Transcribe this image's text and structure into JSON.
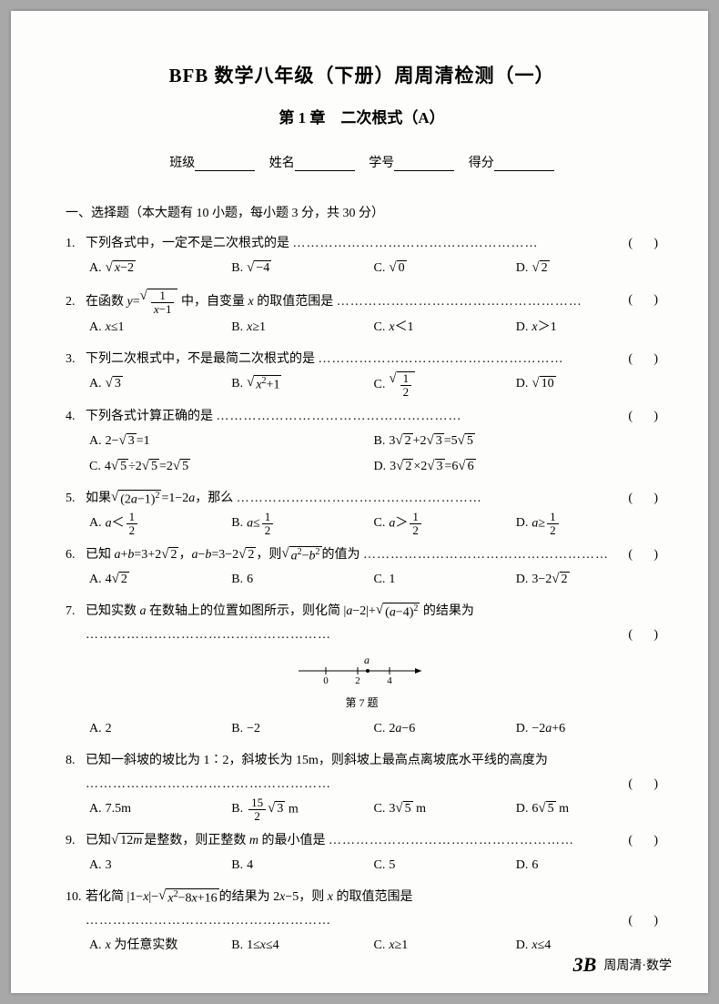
{
  "title": "BFB 数学八年级（下册）周周清检测（一）",
  "subtitle": "第 1 章　二次根式（A）",
  "info_fields": [
    "班级",
    "姓名",
    "学号",
    "得分"
  ],
  "section1": "一、选择题（本大题有 10 小题，每小题 3 分，共 30 分）",
  "questions": [
    {
      "num": "1.",
      "text": "下列各式中，一定不是二次根式的是",
      "options_html": [
        "<span class='sqrt'><span class='sqrt-sym'>√</span><span class='sqrt-body'><span class='ital'>x</span>−2</span></span>",
        "<span class='sqrt'><span class='sqrt-sym'>√</span><span class='sqrt-body'>−4</span></span>",
        "<span class='sqrt'><span class='sqrt-sym'>√</span><span class='sqrt-body'>0</span></span>",
        "<span class='sqrt'><span class='sqrt-sym'>√</span><span class='sqrt-body'>2</span></span>"
      ]
    },
    {
      "num": "2.",
      "text_html": "在函数 <span class='ital'>y</span>=<span class='sqrt'><span class='sqrt-sym'>√</span><span class='sqrt-body'><span class='frac'><span class='frac-num'>1</span><span class='frac-den'><span class='ital'>x</span>−1</span></span></span></span> 中，自变量 <span class='ital'>x</span> 的取值范围是",
      "options_html": [
        "<span class='ital'>x</span>≤1",
        "<span class='ital'>x</span>≥1",
        "<span class='ital'>x</span>＜1",
        "<span class='ital'>x</span>＞1"
      ]
    },
    {
      "num": "3.",
      "text": "下列二次根式中，不是最简二次根式的是",
      "options_html": [
        "<span class='sqrt'><span class='sqrt-sym'>√</span><span class='sqrt-body'>3</span></span>",
        "<span class='sqrt'><span class='sqrt-sym'>√</span><span class='sqrt-body'><span class='ital'>x</span><span class='sup'>2</span>+1</span></span>",
        "<span class='sqrt'><span class='sqrt-sym'>√</span><span class='sqrt-body'><span class='frac'><span class='frac-num'>1</span><span class='frac-den'>2</span></span></span></span>",
        "<span class='sqrt'><span class='sqrt-sym'>√</span><span class='sqrt-body'>10</span></span>"
      ]
    },
    {
      "num": "4.",
      "text": "下列各式计算正确的是",
      "options2_html": [
        "2−<span class='sqrt'><span class='sqrt-sym'>√</span><span class='sqrt-body'>3</span></span>=1",
        "3<span class='sqrt'><span class='sqrt-sym'>√</span><span class='sqrt-body'>2</span></span>+2<span class='sqrt'><span class='sqrt-sym'>√</span><span class='sqrt-body'>3</span></span>=5<span class='sqrt'><span class='sqrt-sym'>√</span><span class='sqrt-body'>5</span></span>",
        "4<span class='sqrt'><span class='sqrt-sym'>√</span><span class='sqrt-body'>5</span></span>÷2<span class='sqrt'><span class='sqrt-sym'>√</span><span class='sqrt-body'>5</span></span>=2<span class='sqrt'><span class='sqrt-sym'>√</span><span class='sqrt-body'>5</span></span>",
        "3<span class='sqrt'><span class='sqrt-sym'>√</span><span class='sqrt-body'>2</span></span>×2<span class='sqrt'><span class='sqrt-sym'>√</span><span class='sqrt-body'>3</span></span>=6<span class='sqrt'><span class='sqrt-sym'>√</span><span class='sqrt-body'>6</span></span>"
      ]
    },
    {
      "num": "5.",
      "text_html": "如果<span class='sqrt'><span class='sqrt-sym'>√</span><span class='sqrt-body'>(2<span class='ital'>a</span>−1)<span class='sup'>2</span></span></span>=1−2<span class='ital'>a</span>，那么",
      "options_html": [
        "<span class='ital'>a</span>＜<span class='frac'><span class='frac-num'>1</span><span class='frac-den'>2</span></span>",
        "<span class='ital'>a</span>≤<span class='frac'><span class='frac-num'>1</span><span class='frac-den'>2</span></span>",
        "<span class='ital'>a</span>＞<span class='frac'><span class='frac-num'>1</span><span class='frac-den'>2</span></span>",
        "<span class='ital'>a</span>≥<span class='frac'><span class='frac-num'>1</span><span class='frac-den'>2</span></span>"
      ]
    },
    {
      "num": "6.",
      "text_html": "已知 <span class='ital'>a</span>+<span class='ital'>b</span>=3+2<span class='sqrt'><span class='sqrt-sym'>√</span><span class='sqrt-body'>2</span></span>，<span class='ital'>a</span>−<span class='ital'>b</span>=3−2<span class='sqrt'><span class='sqrt-sym'>√</span><span class='sqrt-body'>2</span></span>，则<span class='sqrt'><span class='sqrt-sym'>√</span><span class='sqrt-body'><span class='ital'>a</span><span class='sup'>2</span>−<span class='ital'>b</span><span class='sup'>2</span></span></span>的值为",
      "options_html": [
        "4<span class='sqrt'><span class='sqrt-sym'>√</span><span class='sqrt-body'>2</span></span>",
        "6",
        "1",
        "3−2<span class='sqrt'><span class='sqrt-sym'>√</span><span class='sqrt-body'>2</span></span>"
      ]
    },
    {
      "num": "7.",
      "text_html": "已知实数 <span class='ital'>a</span> 在数轴上的位置如图所示，则化简 |<span class='ital'>a</span>−2|+<span class='sqrt'><span class='sqrt-sym'>√</span><span class='sqrt-body'>(<span class='ital'>a</span>−4)<span class='sup'>2</span></span></span> 的结果为",
      "has_figure": true,
      "fig_caption": "第 7 题",
      "options_html": [
        "2",
        "−2",
        "2<span class='ital'>a</span>−6",
        "−2<span class='ital'>a</span>+6"
      ]
    },
    {
      "num": "8.",
      "text": "已知一斜坡的坡比为 1∶2，斜坡长为 15m，则斜坡上最高点离坡底水平线的高度为",
      "options_html": [
        "7.5m",
        "<span class='frac'><span class='frac-num'>15</span><span class='frac-den'>2</span></span><span class='sqrt'><span class='sqrt-sym'>√</span><span class='sqrt-body'>3</span></span> m",
        "3<span class='sqrt'><span class='sqrt-sym'>√</span><span class='sqrt-body'>5</span></span> m",
        "6<span class='sqrt'><span class='sqrt-sym'>√</span><span class='sqrt-body'>5</span></span> m"
      ]
    },
    {
      "num": "9.",
      "text_html": "已知<span class='sqrt'><span class='sqrt-sym'>√</span><span class='sqrt-body'>12<span class='ital'>m</span></span></span>是整数，则正整数 <span class='ital'>m</span> 的最小值是",
      "options_html": [
        "3",
        "4",
        "5",
        "6"
      ]
    },
    {
      "num": "10.",
      "text_html": "若化简 |1−<span class='ital'>x</span>|−<span class='sqrt'><span class='sqrt-sym'>√</span><span class='sqrt-body'><span class='ital'>x</span><span class='sup'>2</span>−8<span class='ital'>x</span>+16</span></span>的结果为 2<span class='ital'>x</span>−5，则 <span class='ital'>x</span> 的取值范围是",
      "options_html": [
        "<span class='ital'>x</span> 为任意实数",
        "1≤<span class='ital'>x</span>≤4",
        "<span class='ital'>x</span>≥1",
        "<span class='ital'>x</span>≤4"
      ]
    }
  ],
  "opt_labels": [
    "A.",
    "B.",
    "C.",
    "D."
  ],
  "footer_logo": "3B",
  "footer_text": "周周清·数学"
}
